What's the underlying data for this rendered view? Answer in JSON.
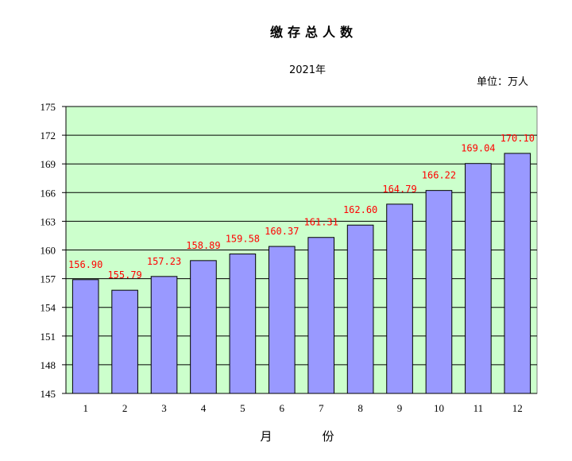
{
  "chart_data": {
    "type": "bar",
    "title": "缴存总人数",
    "subtitle": "2021年",
    "unit_label": "单位：万人",
    "xlabel": "月　份",
    "ylabel": "",
    "categories": [
      "1",
      "2",
      "3",
      "4",
      "5",
      "6",
      "7",
      "8",
      "9",
      "10",
      "11",
      "12"
    ],
    "values": [
      156.9,
      155.79,
      157.23,
      158.89,
      159.58,
      160.37,
      161.31,
      162.6,
      164.79,
      166.22,
      169.04,
      170.1
    ],
    "data_labels": [
      "156.90",
      "155.79",
      "157.23",
      "158.89",
      "159.58",
      "160.37",
      "161.31",
      "162.60",
      "164.79",
      "166.22",
      "169.04",
      "170.10"
    ],
    "yticks": [
      "145",
      "148",
      "151",
      "154",
      "157",
      "160",
      "163",
      "166",
      "169",
      "172",
      "175"
    ],
    "ylim": [
      145,
      175
    ],
    "grid": true,
    "legend": "none",
    "colors": {
      "plot_background": "#ccffcc",
      "bar_fill": "#9999ff",
      "bar_stroke": "#000000",
      "data_label": "#ff0000",
      "gridline": "#000000"
    }
  }
}
